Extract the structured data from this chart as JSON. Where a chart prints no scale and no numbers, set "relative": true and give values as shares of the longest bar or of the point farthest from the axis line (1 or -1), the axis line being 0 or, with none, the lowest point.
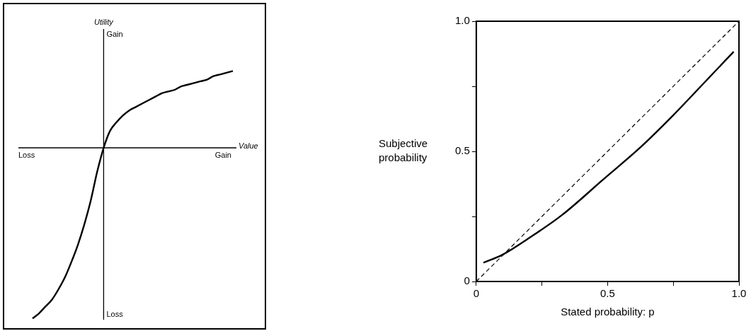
{
  "chart_data": [
    {
      "type": "line",
      "relative": true,
      "xlabel": "Value",
      "ylabel": "Utility",
      "marker": "none",
      "color": "#000000",
      "categories": [
        null,
        null,
        null,
        null,
        null,
        null,
        null,
        null,
        null,
        null,
        null,
        null,
        null,
        null,
        null,
        null,
        null,
        null,
        null,
        null,
        null,
        null,
        null,
        null,
        null,
        null,
        null,
        null,
        null,
        null,
        null,
        null
      ],
      "values": [
        -1,
        -0.97,
        -0.93,
        -0.89,
        -0.83,
        -0.76,
        -0.67,
        -0.57,
        -0.45,
        -0.31,
        -0.14,
        0,
        0.1,
        0.15,
        0.19,
        0.22,
        0.24,
        0.26,
        0.28,
        0.3,
        0.32,
        0.33,
        0.34,
        0.36,
        0.37,
        0.38,
        0.39,
        0.4,
        0.42,
        0.43,
        0.44,
        0.45
      ],
      "annotations": [
        "Gain",
        "Loss",
        "Loss",
        "Gain"
      ]
    },
    {
      "type": "line",
      "xlabel": "Stated probability: p",
      "ylabel": "Subjective probability",
      "marker": "none",
      "xlim": [
        0,
        1
      ],
      "ylim": [
        0,
        1
      ],
      "xticks": [
        0,
        {
          "value": 0.25,
          "label": null
        },
        0.5,
        {
          "value": 0.75,
          "label": null
        },
        {
          "value": 1,
          "label": "1.0"
        }
      ],
      "yticks": [
        0,
        {
          "value": 0.25,
          "label": null
        },
        0.5,
        {
          "value": 0.75,
          "label": null
        },
        {
          "value": 1,
          "label": "1.0"
        }
      ],
      "series": [
        {
          "color": "#000000",
          "line_style": "solid",
          "x": [
            0.027,
            0.1,
            0.198,
            0.326,
            0.49,
            0.62,
            0.746,
            0.883,
            0.98
          ],
          "values": [
            0.072,
            0.103,
            0.165,
            0.255,
            0.398,
            0.511,
            0.635,
            0.78,
            0.883
          ]
        },
        {
          "color": "#000000",
          "line_style": "dashed",
          "x": [
            0,
            1
          ],
          "values": [
            0,
            1
          ]
        }
      ]
    }
  ]
}
